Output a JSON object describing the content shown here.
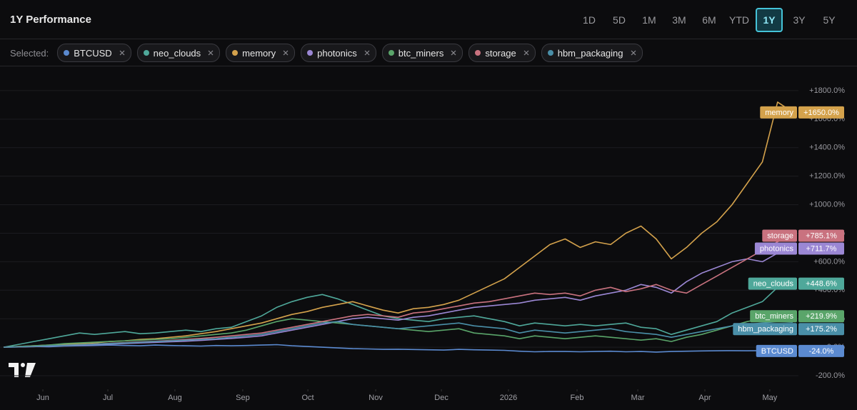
{
  "header": {
    "title": "1Y Performance",
    "ranges": [
      "1D",
      "5D",
      "1M",
      "3M",
      "6M",
      "YTD",
      "1Y",
      "3Y",
      "5Y"
    ],
    "active_range": "1Y",
    "selected_label": "Selected:"
  },
  "chart_data": {
    "type": "line",
    "xlim": [
      0,
      52
    ],
    "xticks": [
      {
        "value": 2.59,
        "label": "Jun"
      },
      {
        "value": 6.87,
        "label": "Jul"
      },
      {
        "value": 11.29,
        "label": "Aug"
      },
      {
        "value": 15.76,
        "label": "Sep"
      },
      {
        "value": 20.05,
        "label": "Oct"
      },
      {
        "value": 24.52,
        "label": "Nov"
      },
      {
        "value": 28.85,
        "label": "Dec"
      },
      {
        "value": 33.27,
        "label": "2026"
      },
      {
        "value": 37.79,
        "label": "Feb"
      },
      {
        "value": 41.79,
        "label": "Mar"
      },
      {
        "value": 46.21,
        "label": "Apr"
      },
      {
        "value": 50.49,
        "label": "May"
      }
    ],
    "ylim": [
      -295,
      1970
    ],
    "yticks": [
      {
        "value": -200,
        "label": "-200.0%"
      },
      {
        "value": 0,
        "label": "0.0%"
      },
      {
        "value": 200,
        "label": "+200.0%"
      },
      {
        "value": 400,
        "label": "+400.0%"
      },
      {
        "value": 600,
        "label": "+600.0%"
      },
      {
        "value": 800,
        "label": "+800.0%"
      },
      {
        "value": 1000,
        "label": "+1000.0%"
      },
      {
        "value": 1200,
        "label": "+1200.0%"
      },
      {
        "value": 1400,
        "label": "+1400.0%"
      },
      {
        "value": 1600,
        "label": "+1600.0%"
      },
      {
        "value": 1800,
        "label": "+1800.0%"
      }
    ],
    "grid": true,
    "series": [
      {
        "name": "BTCUSD",
        "color": "#5b8ad0",
        "end_label": "-24.0%",
        "values": [
          0,
          2,
          5,
          3,
          8,
          10,
          12,
          15,
          12,
          10,
          15,
          12,
          10,
          8,
          12,
          10,
          12,
          15,
          18,
          10,
          5,
          0,
          -5,
          -10,
          -12,
          -15,
          -14,
          -16,
          -18,
          -20,
          -15,
          -18,
          -20,
          -22,
          -28,
          -32,
          -30,
          -30,
          -32,
          -30,
          -28,
          -32,
          -30,
          -34,
          -30,
          -28,
          -26,
          -25,
          -24,
          -25,
          -24,
          -24,
          -24.0
        ]
      },
      {
        "name": "neo_clouds",
        "color": "#4fa89a",
        "end_label": "+448.6%",
        "values": [
          0,
          20,
          40,
          60,
          80,
          100,
          90,
          100,
          110,
          95,
          100,
          110,
          120,
          110,
          130,
          140,
          180,
          220,
          280,
          320,
          350,
          370,
          340,
          300,
          260,
          220,
          200,
          190,
          180,
          200,
          210,
          220,
          200,
          180,
          150,
          170,
          160,
          150,
          160,
          150,
          160,
          170,
          140,
          130,
          90,
          120,
          150,
          180,
          240,
          280,
          320,
          420,
          448.6
        ]
      },
      {
        "name": "memory",
        "color": "#d4a24c",
        "end_label": "+1650.0%",
        "values": [
          0,
          5,
          10,
          15,
          20,
          25,
          30,
          40,
          45,
          55,
          60,
          70,
          80,
          95,
          110,
          130,
          150,
          170,
          200,
          230,
          250,
          280,
          300,
          320,
          290,
          260,
          240,
          270,
          280,
          300,
          330,
          380,
          430,
          480,
          560,
          640,
          720,
          760,
          700,
          740,
          720,
          800,
          850,
          760,
          620,
          700,
          800,
          880,
          1000,
          1150,
          1300,
          1720,
          1650
        ]
      },
      {
        "name": "photonics",
        "color": "#9b87d4",
        "end_label": "+711.7%",
        "values": [
          0,
          2,
          4,
          8,
          12,
          15,
          18,
          22,
          26,
          30,
          34,
          38,
          42,
          48,
          55,
          62,
          70,
          80,
          100,
          120,
          140,
          160,
          180,
          200,
          210,
          200,
          190,
          210,
          220,
          240,
          260,
          280,
          290,
          300,
          310,
          330,
          340,
          350,
          330,
          360,
          380,
          400,
          440,
          420,
          380,
          460,
          520,
          560,
          600,
          620,
          600,
          660,
          711.7
        ]
      },
      {
        "name": "btc_miners",
        "color": "#5aa56a",
        "end_label": "+219.9%",
        "values": [
          0,
          5,
          10,
          15,
          25,
          30,
          35,
          40,
          45,
          50,
          55,
          60,
          70,
          80,
          90,
          100,
          120,
          150,
          180,
          200,
          190,
          180,
          170,
          160,
          150,
          140,
          130,
          120,
          110,
          120,
          130,
          100,
          90,
          80,
          60,
          80,
          70,
          60,
          70,
          80,
          70,
          60,
          50,
          60,
          40,
          70,
          90,
          120,
          150,
          180,
          200,
          230,
          219.9
        ]
      },
      {
        "name": "storage",
        "color": "#c9727f",
        "end_label": "+785.1%",
        "values": [
          0,
          3,
          6,
          10,
          14,
          18,
          22,
          28,
          32,
          38,
          42,
          48,
          55,
          62,
          70,
          80,
          90,
          100,
          120,
          140,
          160,
          180,
          200,
          220,
          230,
          220,
          210,
          240,
          250,
          270,
          290,
          310,
          320,
          340,
          360,
          380,
          370,
          380,
          360,
          400,
          420,
          390,
          410,
          440,
          400,
          380,
          440,
          500,
          560,
          620,
          680,
          740,
          785.1
        ]
      },
      {
        "name": "hbm_packaging",
        "color": "#4a8fa8",
        "end_label": "+175.2%",
        "values": [
          0,
          3,
          6,
          10,
          14,
          18,
          22,
          26,
          30,
          35,
          40,
          45,
          50,
          55,
          60,
          70,
          80,
          90,
          110,
          130,
          150,
          170,
          180,
          160,
          150,
          140,
          130,
          140,
          150,
          160,
          170,
          150,
          140,
          130,
          100,
          120,
          110,
          100,
          110,
          120,
          130,
          110,
          100,
          90,
          70,
          90,
          110,
          130,
          150,
          160,
          170,
          180,
          175.2
        ]
      }
    ]
  }
}
